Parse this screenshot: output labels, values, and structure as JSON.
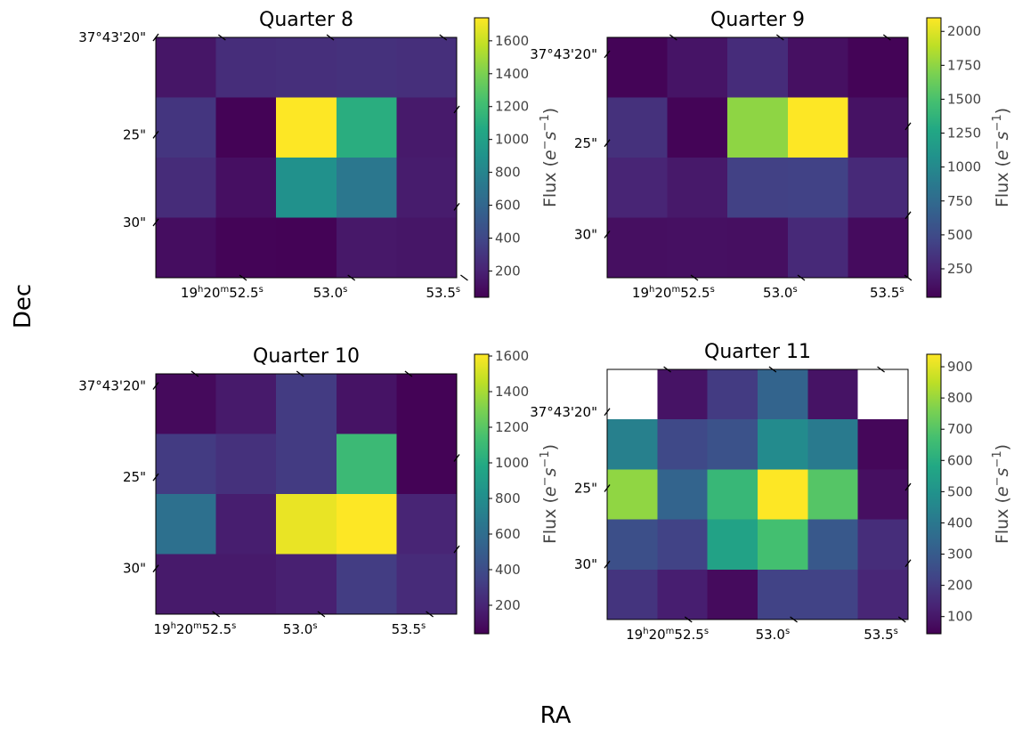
{
  "figure": {
    "xlabel": "RA",
    "ylabel": "Dec",
    "cbar_label": "Flux ($e^{-}s^{-1}$)",
    "cbar_label_parts": [
      "Flux (",
      "e",
      "−",
      "s",
      "−1",
      ")"
    ]
  },
  "chart_data": [
    {
      "type": "heatmap",
      "title": "Quarter 8",
      "colormap": "viridis",
      "vmin": 40,
      "vmax": 1740,
      "rows": 4,
      "cols": 5,
      "values": [
        [
          140,
          260,
          270,
          280,
          270
        ],
        [
          300,
          50,
          1740,
          1100,
          160
        ],
        [
          250,
          110,
          890,
          710,
          170
        ],
        [
          100,
          55,
          50,
          150,
          140
        ]
      ],
      "colorbar_ticks": [
        200,
        400,
        600,
        800,
        1000,
        1200,
        1400,
        1600
      ],
      "dec_ticks": [
        {
          "label": "37°43'20\"",
          "frac": 0.0
        },
        {
          "label": "25\"",
          "frac": 0.405
        },
        {
          "label": "30\"",
          "frac": 0.77
        }
      ],
      "ra_ticks": [
        {
          "h": "19",
          "m": "20",
          "s": "52.5",
          "frac": 0.22
        },
        {
          "h": "",
          "m": "",
          "s": "53.0",
          "frac": 0.58
        },
        {
          "h": "",
          "m": "",
          "s": "53.5",
          "frac": 0.955
        }
      ]
    },
    {
      "type": "heatmap",
      "title": "Quarter 9",
      "colormap": "viridis",
      "vmin": 40,
      "vmax": 2100,
      "rows": 4,
      "cols": 5,
      "values": [
        [
          60,
          150,
          300,
          130,
          60
        ],
        [
          330,
          60,
          1750,
          2100,
          140
        ],
        [
          250,
          180,
          430,
          440,
          280
        ],
        [
          120,
          130,
          120,
          280,
          100
        ]
      ],
      "colorbar_ticks": [
        250,
        500,
        750,
        1000,
        1250,
        1500,
        1750,
        2000
      ],
      "dec_ticks": [
        {
          "label": "37°43'20\"",
          "frac": 0.07
        },
        {
          "label": "25\"",
          "frac": 0.44
        },
        {
          "label": "30\"",
          "frac": 0.82
        }
      ],
      "ra_ticks": [
        {
          "h": "19",
          "m": "20",
          "s": "52.5",
          "frac": 0.22
        },
        {
          "h": "",
          "m": "",
          "s": "53.0",
          "frac": 0.575
        },
        {
          "h": "",
          "m": "",
          "s": "53.5",
          "frac": 0.93
        }
      ]
    },
    {
      "type": "heatmap",
      "title": "Quarter 10",
      "colormap": "viridis",
      "vmin": 40,
      "vmax": 1610,
      "rows": 4,
      "cols": 5,
      "values": [
        [
          80,
          150,
          310,
          120,
          50
        ],
        [
          310,
          260,
          310,
          1100,
          50
        ],
        [
          620,
          170,
          1560,
          1610,
          200
        ],
        [
          150,
          150,
          180,
          320,
          230
        ]
      ],
      "colorbar_ticks": [
        200,
        400,
        600,
        800,
        1000,
        1200,
        1400,
        1600
      ],
      "dec_ticks": [
        {
          "label": "37°43'20\"",
          "frac": 0.05
        },
        {
          "label": "25\"",
          "frac": 0.43
        },
        {
          "label": "30\"",
          "frac": 0.81
        }
      ],
      "ra_ticks": [
        {
          "h": "19",
          "m": "20",
          "s": "52.5",
          "frac": 0.13
        },
        {
          "h": "",
          "m": "",
          "s": "53.0",
          "frac": 0.48
        },
        {
          "h": "",
          "m": "",
          "s": "53.5",
          "frac": 0.84
        }
      ]
    },
    {
      "type": "heatmap",
      "title": "Quarter 11",
      "colormap": "viridis",
      "vmin": 45,
      "vmax": 940,
      "rows": 5,
      "cols": 6,
      "values": [
        [
          null,
          90,
          200,
          330,
          90,
          null
        ],
        [
          430,
          240,
          270,
          470,
          410,
          60
        ],
        [
          790,
          330,
          640,
          940,
          700,
          80
        ],
        [
          260,
          220,
          560,
          670,
          290,
          160
        ],
        [
          180,
          120,
          70,
          220,
          220,
          140
        ]
      ],
      "colorbar_ticks": [
        100,
        200,
        300,
        400,
        500,
        600,
        700,
        800,
        900
      ],
      "dec_ticks": [
        {
          "label": "37°43'20\"",
          "frac": 0.17
        },
        {
          "label": "25\"",
          "frac": 0.475
        },
        {
          "label": "30\"",
          "frac": 0.78
        }
      ],
      "ra_ticks": [
        {
          "h": "19",
          "m": "20",
          "s": "52.5",
          "frac": 0.2
        },
        {
          "h": "",
          "m": "",
          "s": "53.0",
          "frac": 0.55
        },
        {
          "h": "",
          "m": "",
          "s": "53.5",
          "frac": 0.91
        }
      ]
    }
  ]
}
